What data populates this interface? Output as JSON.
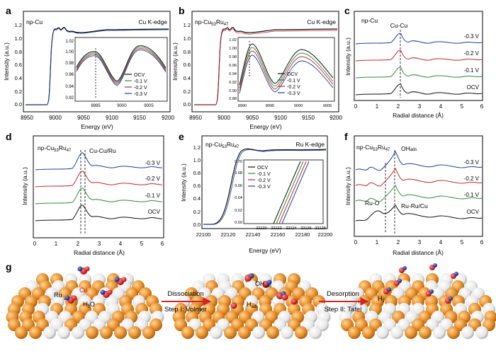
{
  "panels": {
    "a": {
      "letter": "a",
      "sample": "np-Cu",
      "edge": "Cu K-edge",
      "xlabel": "Energy (eV)",
      "ylabel": "Intensity (a.u.)",
      "xticks": [
        "8950",
        "9000",
        "9050",
        "9100",
        "9150",
        "9200"
      ],
      "yticks": [
        "0.0",
        "0.2",
        "0.4",
        "0.6",
        "0.8",
        "1.0",
        "1.2"
      ],
      "inset": {
        "xticks": [
          "8995",
          "9000",
          "9005"
        ],
        "yticks": [
          "0.92",
          "0.94",
          "0.96",
          "0.98",
          "1.00",
          "1.02"
        ],
        "legend": [
          "OCV",
          "-0.1 V",
          "-0.2 V",
          "-0.3 V"
        ]
      }
    },
    "b": {
      "letter": "b",
      "sample": "np-Cu",
      "sub1": "53",
      "ru": "Ru",
      "sub2": "47",
      "edge": "Cu K-edge",
      "xlabel": "Energy (eV)",
      "ylabel": "Intensity (a.u.)",
      "xticks": [
        "8950",
        "9000",
        "9050",
        "9100",
        "9150",
        "9200"
      ],
      "yticks": [
        "0.0",
        "0.2",
        "0.4",
        "0.6",
        "0.8",
        "1.0",
        "1.2"
      ],
      "inset": {
        "xticks": [
          "8990",
          "8995",
          "9000",
          "9005"
        ],
        "yticks": [
          "0.88",
          "0.90",
          "0.92",
          "0.94",
          "0.96",
          "0.98",
          "1.00",
          "1.02"
        ],
        "legend": [
          "OCV",
          "-0.1 V",
          "-0.2 V",
          "-0.3 V"
        ]
      }
    },
    "c": {
      "letter": "c",
      "sample": "np-Cu",
      "peak": "Cu-Cu",
      "xlabel": "Radial distance (Å)",
      "ylabel": "Intensity (a.u.)",
      "xticks": [
        "0",
        "1",
        "2",
        "3",
        "4",
        "5",
        "6"
      ],
      "labels": [
        "-0.3 V",
        "-0.2 V",
        "-0.1 V",
        "OCV"
      ]
    },
    "d": {
      "letter": "d",
      "sample": "np-Cu",
      "sub1": "53",
      "ru": "Ru",
      "sub2": "47",
      "peak": "Cu-Cu/Ru",
      "xlabel": "Radial distance (Å)",
      "ylabel": "Intensity (a.u.)",
      "xticks": [
        "0",
        "1",
        "2",
        "3",
        "4",
        "5",
        "6"
      ],
      "labels": [
        "-0.3 V",
        "-0.2 V",
        "-0.1 V",
        "OCV"
      ]
    },
    "e": {
      "letter": "e",
      "sample": "np-Cu",
      "sub1": "53",
      "ru": "Ru",
      "sub2": "47",
      "edge": "Ru K-edge",
      "xlabel": "Energy (eV)",
      "ylabel": "Intensity (a.u.)",
      "xticks": [
        "22100",
        "22120",
        "22140",
        "22160",
        "22180",
        "22200"
      ],
      "yticks": [
        "0.0",
        "0.2",
        "0.4",
        "0.6",
        "0.8",
        "1.0",
        "1.2"
      ],
      "inset": {
        "xticks": [
          "22120",
          "22122",
          "22124",
          "22126",
          "22128"
        ],
        "yticks": [
          "0.60",
          "0.62",
          "0.64",
          "0.66",
          "0.68",
          "0.70"
        ],
        "legend": [
          "OCV",
          "-0.1 V",
          "-0.2 V",
          "-0.3 V"
        ]
      }
    },
    "f": {
      "letter": "f",
      "sample": "np-Cu",
      "sub1": "53",
      "ru": "Ru",
      "sub2": "47",
      "oh": "OH",
      "oh_sub": "ads",
      "ruo": "Ru-O",
      "rurucu": "Ru-Ru/Cu",
      "xlabel": "Radial distance (Å)",
      "ylabel": "Intensity (a.u.)",
      "xticks": [
        "0",
        "1",
        "2",
        "3",
        "4",
        "5",
        "6"
      ],
      "labels": [
        "-0.3 V",
        "-0.2 V",
        "-0.1 V",
        "OCV"
      ]
    },
    "g": {
      "letter": "g",
      "ru": "Ru",
      "cu": "Cu",
      "h2o_h": "H",
      "h2o_sub": "2",
      "h2o_o": "O",
      "step1_title": "Dissociation",
      "step1_sub": "Step I: Volmer",
      "oh": "OH",
      "oh_sub": "ads",
      "hads": "H",
      "hads_sub": "ads",
      "step2_title": "Desorption",
      "step2_sub": "Step II: Tafel",
      "h2": "H",
      "h2_sub": "2"
    }
  },
  "colors": {
    "ocv": "#111111",
    "v01": "#2e8b3a",
    "v02": "#c0282d",
    "v03": "#1f3f9c",
    "cu_atom": "#e8902a",
    "ru_atom": "#e8e8e8",
    "o_atom": "#d1232a",
    "h_atom": "#22338f",
    "arrow": "#d0242b"
  }
}
